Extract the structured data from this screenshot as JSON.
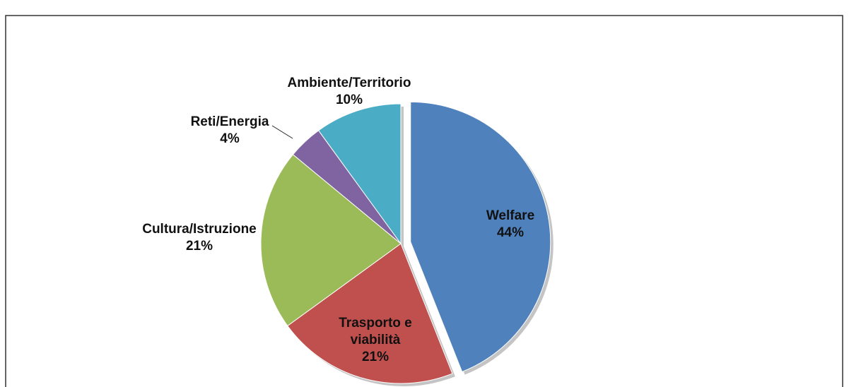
{
  "chart_data": {
    "type": "pie",
    "categories": [
      "Welfare",
      "Trasporto e viabilità",
      "Cultura/Istruzione",
      "Reti/Energia",
      "Ambiente/Territorio"
    ],
    "values": [
      44,
      21,
      21,
      4,
      10
    ],
    "value_labels": [
      "44%",
      "21%",
      "21%",
      "4%",
      "10%"
    ],
    "colors": [
      "#4f81bd",
      "#c0504d",
      "#9bbb59",
      "#8064a2",
      "#4bacc6"
    ],
    "exploded": [
      0
    ]
  }
}
